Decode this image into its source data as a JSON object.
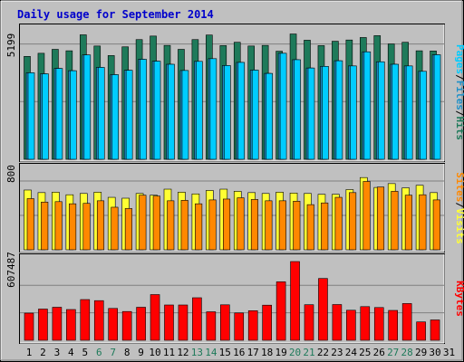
{
  "chart_data": [
    {
      "type": "bar",
      "title": "Daily usage for September 2014",
      "ytick_label": "5199",
      "legend": [
        "Pages",
        "Files",
        "Hits"
      ],
      "colors": {
        "hits": "#1e7a5a",
        "files": "#1e90c8",
        "pages": "#00ccff"
      },
      "categories": [
        "1",
        "2",
        "3",
        "4",
        "5",
        "6",
        "7",
        "8",
        "9",
        "10",
        "11",
        "12",
        "13",
        "14",
        "15",
        "16",
        "17",
        "18",
        "19",
        "20",
        "21",
        "22",
        "23",
        "24",
        "25",
        "26",
        "27",
        "28",
        "29",
        "30"
      ],
      "ylim": [
        0,
        6500
      ],
      "series": [
        {
          "name": "Hits",
          "values": [
            4960,
            5110,
            5300,
            5230,
            6000,
            5460,
            5000,
            5420,
            5770,
            5940,
            5490,
            5300,
            5770,
            5990,
            5480,
            5640,
            5460,
            5490,
            5210,
            6040,
            5740,
            5480,
            5690,
            5750,
            5870,
            5960,
            5560,
            5640,
            5230,
            5220
          ]
        },
        {
          "name": "Files",
          "values": [
            4170,
            4120,
            4380,
            4270,
            5030,
            4430,
            4080,
            4290,
            4820,
            4730,
            4580,
            4280,
            4720,
            4850,
            4520,
            4670,
            4300,
            4140,
            5110,
            4800,
            4400,
            4480,
            4750,
            4500,
            5180,
            4700,
            4580,
            4500,
            4240,
            5040
          ]
        },
        {
          "name": "Pages",
          "values": [
            4170,
            4120,
            4380,
            4270,
            5030,
            4430,
            4080,
            4290,
            4820,
            4730,
            4580,
            4280,
            4720,
            4850,
            4520,
            4670,
            4300,
            4140,
            5110,
            4800,
            4400,
            4480,
            4750,
            4500,
            5180,
            4700,
            4580,
            4500,
            4240,
            5040
          ]
        }
      ]
    },
    {
      "type": "bar",
      "ytick_label": "800",
      "legend": [
        "Sites",
        "Visits"
      ],
      "colors": {
        "visits": "#ffff33",
        "sites": "#ff8800"
      },
      "ylim": [
        0,
        1000
      ],
      "series": [
        {
          "name": "Visits",
          "values": [
            695,
            665,
            670,
            640,
            655,
            670,
            610,
            600,
            655,
            635,
            705,
            670,
            650,
            690,
            705,
            680,
            665,
            655,
            670,
            660,
            655,
            645,
            645,
            700,
            840,
            725,
            770,
            720,
            750,
            665
          ]
        },
        {
          "name": "Sites",
          "values": [
            595,
            555,
            560,
            535,
            540,
            570,
            495,
            480,
            635,
            625,
            570,
            575,
            535,
            580,
            590,
            605,
            585,
            570,
            570,
            565,
            525,
            545,
            610,
            665,
            795,
            730,
            680,
            635,
            640,
            580
          ]
        }
      ]
    },
    {
      "type": "bar",
      "ytick_label": "607487",
      "legend": [
        "KBytes"
      ],
      "colors": {
        "kbytes": "#ff0000"
      },
      "ylim": [
        0,
        950000
      ],
      "series": [
        {
          "name": "KBytes",
          "values": [
            300000,
            345000,
            365000,
            340000,
            450000,
            438000,
            352000,
            318000,
            365000,
            505000,
            390000,
            390000,
            470000,
            315000,
            392000,
            302000,
            327000,
            388000,
            646000,
            870000,
            393000,
            683000,
            395000,
            332000,
            372000,
            362000,
            330000,
            406000,
            203000,
            225000
          ]
        }
      ]
    }
  ],
  "x_axis_labels": [
    "1",
    "2",
    "3",
    "4",
    "5",
    "6",
    "7",
    "8",
    "9",
    "10",
    "11",
    "12",
    "13",
    "14",
    "15",
    "16",
    "17",
    "18",
    "19",
    "20",
    "21",
    "22",
    "23",
    "24",
    "25",
    "26",
    "27",
    "28",
    "29",
    "30",
    "31"
  ],
  "weekend_days": [
    6,
    7,
    13,
    14,
    20,
    21,
    27,
    28
  ]
}
